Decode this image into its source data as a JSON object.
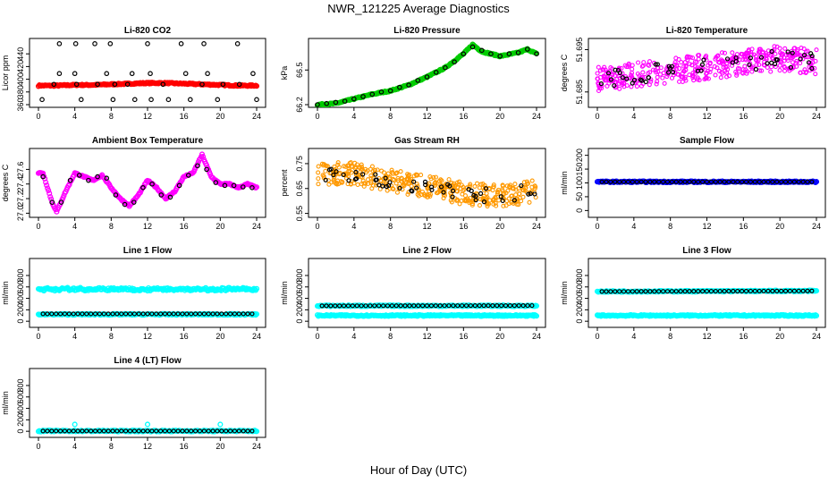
{
  "figure": {
    "title": "NWR_121225  Average Diagnostics",
    "xlabel": "Hour of Day (UTC)"
  },
  "colors": {
    "co2_flask": "#ff0000",
    "pressure": "#00cc00",
    "temperature": "#ff00ff",
    "rh": "#ff9900",
    "sample_flow": "#0000ff",
    "line_flow_cyan": "#00ffff",
    "markers": "#000000"
  },
  "chart_data": [
    {
      "type": "scatter",
      "title": "Li-820 CO2",
      "ylabel": "Licor ppm",
      "x_ticks": [
        "0",
        "4",
        "8",
        "12",
        "16",
        "20",
        "24"
      ],
      "y_ticks": [
        "360",
        "380",
        "400",
        "420",
        "440"
      ],
      "xlim": [
        0,
        24
      ],
      "ylim": [
        360,
        460
      ],
      "series": [
        {
          "color": "#ff0000",
          "kind": "dense",
          "x": [
            0,
            2,
            4,
            6,
            8,
            10,
            12,
            14,
            16,
            18,
            20,
            22,
            24
          ],
          "values": [
            390,
            390,
            391,
            391,
            392,
            393,
            394,
            394,
            393,
            392,
            391,
            390,
            390
          ]
        },
        {
          "color": "#000000",
          "kind": "sparse",
          "x": [
            0.4,
            1.7,
            2.3,
            2.3,
            4.1,
            4.0,
            4.2,
            4.7,
            6.2,
            6.5,
            7.5,
            7.9,
            8.2,
            8.4,
            9.8,
            10.3,
            10.6,
            12.0,
            12.3,
            12.4,
            13.7,
            14.3,
            15.7,
            16.2,
            16.7,
            18.0,
            18.2,
            18.6,
            19.7,
            20.3,
            21.9,
            22.1,
            23.6,
            24.0
          ],
          "values": [
            368,
            392,
            456,
            409,
            456,
            409,
            392,
            368,
            456,
            392,
            409,
            456,
            368,
            392,
            392,
            409,
            368,
            456,
            409,
            368,
            392,
            368,
            456,
            409,
            368,
            392,
            456,
            409,
            368,
            392,
            456,
            392,
            409,
            368
          ]
        }
      ]
    },
    {
      "type": "scatter",
      "title": "Li-820 Pressure",
      "ylabel": "kPa",
      "x_ticks": [
        "0",
        "4",
        "8",
        "12",
        "16",
        "20",
        "24"
      ],
      "y_ticks": [
        "66.2",
        "66.5"
      ],
      "xlim": [
        0,
        24
      ],
      "ylim": [
        66.2,
        66.75
      ],
      "series": [
        {
          "color": "#00cc00",
          "kind": "dense",
          "x": [
            0,
            2,
            4,
            6,
            8,
            10,
            12,
            14,
            16,
            17,
            18,
            20,
            22,
            23,
            24
          ],
          "values": [
            66.2,
            66.21,
            66.25,
            66.29,
            66.32,
            66.37,
            66.44,
            66.52,
            66.64,
            66.72,
            66.66,
            66.62,
            66.65,
            66.68,
            66.64
          ]
        },
        {
          "color": "#000000",
          "kind": "sparse",
          "x": [
            0,
            1,
            2,
            3,
            4,
            5,
            6,
            7,
            8,
            9,
            10,
            11,
            12,
            13,
            14,
            15,
            16,
            17,
            18,
            19,
            20,
            21,
            22,
            23,
            24
          ],
          "values": [
            66.2,
            66.21,
            66.22,
            66.23,
            66.25,
            66.27,
            66.29,
            66.31,
            66.32,
            66.35,
            66.37,
            66.41,
            66.44,
            66.48,
            66.52,
            66.57,
            66.64,
            66.7,
            66.67,
            66.64,
            66.62,
            66.64,
            66.65,
            66.68,
            66.64
          ]
        }
      ]
    },
    {
      "type": "scatter",
      "title": "Li-820 Temperature",
      "ylabel": "degrees C",
      "x_ticks": [
        "0",
        "4",
        "8",
        "12",
        "16",
        "20",
        "24"
      ],
      "y_ticks": [
        "51.685",
        "51.695"
      ],
      "xlim": [
        0,
        24
      ],
      "ylim": [
        51.682,
        51.697
      ],
      "series": [
        {
          "color": "#ff00ff",
          "kind": "noise",
          "x": [
            0,
            4,
            8,
            12,
            16,
            20,
            24
          ],
          "values": [
            51.688,
            51.689,
            51.69,
            51.691,
            51.692,
            51.693,
            51.692
          ],
          "spread": 0.006
        },
        {
          "color": "#000000",
          "kind": "noise-sparse",
          "x": [
            0,
            4,
            8,
            12,
            16,
            20,
            24
          ],
          "values": [
            51.688,
            51.689,
            51.69,
            51.691,
            51.692,
            51.693,
            51.692
          ],
          "spread": 0.004
        }
      ]
    },
    {
      "type": "line",
      "title": "Ambient Box Temperature",
      "ylabel": "degrees C",
      "x_ticks": [
        "0",
        "4",
        "8",
        "12",
        "16",
        "20",
        "24"
      ],
      "y_ticks": [
        "27.0",
        "27.2",
        "27.4",
        "27.6"
      ],
      "xlim": [
        0,
        24
      ],
      "ylim": [
        26.98,
        27.85
      ],
      "series": [
        {
          "color": "#ff00ff",
          "kind": "dense",
          "x": [
            0,
            0.5,
            1,
            1.5,
            2,
            3,
            4,
            5,
            6,
            7,
            8,
            9,
            10,
            11,
            12,
            13,
            14,
            15,
            16,
            17,
            18,
            19,
            20,
            21,
            22,
            23,
            24
          ],
          "values": [
            27.55,
            27.55,
            27.35,
            27.15,
            27.02,
            27.3,
            27.55,
            27.5,
            27.45,
            27.52,
            27.35,
            27.2,
            27.1,
            27.25,
            27.45,
            27.35,
            27.2,
            27.3,
            27.5,
            27.55,
            27.8,
            27.5,
            27.4,
            27.4,
            27.35,
            27.4,
            27.35
          ]
        },
        {
          "color": "#000000",
          "kind": "sparse",
          "x": [
            0.5,
            1.5,
            2.5,
            3.5,
            4.5,
            5.5,
            6.5,
            7.5,
            8.5,
            9.5,
            10.5,
            11.5,
            12.5,
            13.5,
            14.5,
            15.5,
            16.5,
            17.5,
            18.5,
            19.5,
            20.5,
            21.5,
            22.5,
            23.5
          ],
          "values": [
            27.5,
            27.15,
            27.15,
            27.45,
            27.52,
            27.45,
            27.5,
            27.48,
            27.25,
            27.12,
            27.15,
            27.35,
            27.4,
            27.25,
            27.22,
            27.38,
            27.52,
            27.65,
            27.6,
            27.42,
            27.38,
            27.38,
            27.36,
            27.35
          ]
        }
      ]
    },
    {
      "type": "scatter",
      "title": "Gas Stream RH",
      "ylabel": "percent",
      "x_ticks": [
        "0",
        "4",
        "8",
        "12",
        "16",
        "20",
        "24"
      ],
      "y_ticks": [
        "0.55",
        "0.65",
        "0.75"
      ],
      "xlim": [
        0,
        24
      ],
      "ylim": [
        0.545,
        0.8
      ],
      "series": [
        {
          "color": "#ff9900",
          "kind": "noise",
          "x": [
            0,
            4,
            8,
            12,
            16,
            20,
            24
          ],
          "values": [
            0.71,
            0.71,
            0.68,
            0.66,
            0.63,
            0.62,
            0.64
          ],
          "spread": 0.09
        },
        {
          "color": "#000000",
          "kind": "noise-sparse",
          "x": [
            0,
            4,
            8,
            12,
            16,
            20,
            24
          ],
          "values": [
            0.71,
            0.71,
            0.68,
            0.66,
            0.63,
            0.62,
            0.64
          ],
          "spread": 0.06
        }
      ]
    },
    {
      "type": "scatter",
      "title": "Sample Flow",
      "ylabel": "ml/min",
      "x_ticks": [
        "0",
        "4",
        "8",
        "12",
        "16",
        "20",
        "24"
      ],
      "y_ticks": [
        "0",
        "50",
        "100",
        "150",
        "200"
      ],
      "xlim": [
        0,
        24
      ],
      "ylim": [
        -15,
        215
      ],
      "series": [
        {
          "color": "#0000ff",
          "kind": "dense",
          "x": [
            0,
            24
          ],
          "values": [
            104,
            104
          ]
        },
        {
          "color": "#000000",
          "kind": "sparse-regular",
          "x": [
            0,
            24
          ],
          "values": [
            104,
            104
          ]
        }
      ]
    },
    {
      "type": "scatter",
      "title": "Line 1 Flow",
      "ylabel": "ml/min",
      "x_ticks": [
        "0",
        "4",
        "8",
        "12",
        "16",
        "20",
        "24"
      ],
      "y_ticks": [
        "0",
        "200",
        "400",
        "600",
        "800"
      ],
      "xlim": [
        0,
        24
      ],
      "ylim": [
        -60,
        1050
      ],
      "series": [
        {
          "color": "#00ffff",
          "kind": "dense",
          "x": [
            0,
            24
          ],
          "values": [
            560,
            560
          ],
          "spread": 40
        },
        {
          "color": "#00ffff",
          "kind": "dense",
          "x": [
            0,
            24
          ],
          "values": [
            120,
            120
          ]
        },
        {
          "color": "#000000",
          "kind": "sparse-regular",
          "x": [
            0,
            24
          ],
          "values": [
            130,
            130
          ]
        }
      ]
    },
    {
      "type": "scatter",
      "title": "Line 2 Flow",
      "ylabel": "ml/min",
      "x_ticks": [
        "0",
        "4",
        "8",
        "12",
        "16",
        "20",
        "24"
      ],
      "y_ticks": [
        "0",
        "200",
        "400",
        "600",
        "800"
      ],
      "xlim": [
        0,
        24
      ],
      "ylim": [
        -60,
        1050
      ],
      "series": [
        {
          "color": "#00ffff",
          "kind": "dense",
          "x": [
            0,
            24
          ],
          "values": [
            270,
            270
          ]
        },
        {
          "color": "#00ffff",
          "kind": "dense",
          "x": [
            0,
            24
          ],
          "values": [
            100,
            100
          ]
        },
        {
          "color": "#000000",
          "kind": "sparse-regular",
          "x": [
            0,
            24
          ],
          "values": [
            270,
            275
          ]
        }
      ]
    },
    {
      "type": "scatter",
      "title": "Line 3 Flow",
      "ylabel": "ml/min",
      "x_ticks": [
        "0",
        "4",
        "8",
        "12",
        "16",
        "20",
        "24"
      ],
      "y_ticks": [
        "0",
        "200",
        "400",
        "600",
        "800"
      ],
      "xlim": [
        0,
        24
      ],
      "ylim": [
        -60,
        1050
      ],
      "series": [
        {
          "color": "#00ffff",
          "kind": "dense",
          "x": [
            0,
            24
          ],
          "values": [
            520,
            530
          ]
        },
        {
          "color": "#00ffff",
          "kind": "dense",
          "x": [
            0,
            24
          ],
          "values": [
            100,
            100
          ]
        },
        {
          "color": "#000000",
          "kind": "sparse-regular",
          "x": [
            0,
            24
          ],
          "values": [
            520,
            530
          ]
        }
      ]
    },
    {
      "type": "scatter",
      "title": "Line 4 (LT) Flow",
      "ylabel": "ml/min",
      "x_ticks": [
        "0",
        "4",
        "8",
        "12",
        "16",
        "20",
        "24"
      ],
      "y_ticks": [
        "0",
        "200",
        "400",
        "600",
        "800"
      ],
      "xlim": [
        0,
        24
      ],
      "ylim": [
        -60,
        1050
      ],
      "series": [
        {
          "color": "#00ffff",
          "kind": "dense",
          "x": [
            0,
            24
          ],
          "values": [
            5,
            5
          ]
        },
        {
          "color": "#000000",
          "kind": "sparse-regular",
          "x": [
            0,
            24
          ],
          "values": [
            5,
            5
          ]
        },
        {
          "color": "#00ffff",
          "kind": "spikes",
          "x": [
            4,
            12,
            20
          ],
          "values": [
            120,
            120,
            120
          ]
        }
      ]
    }
  ]
}
